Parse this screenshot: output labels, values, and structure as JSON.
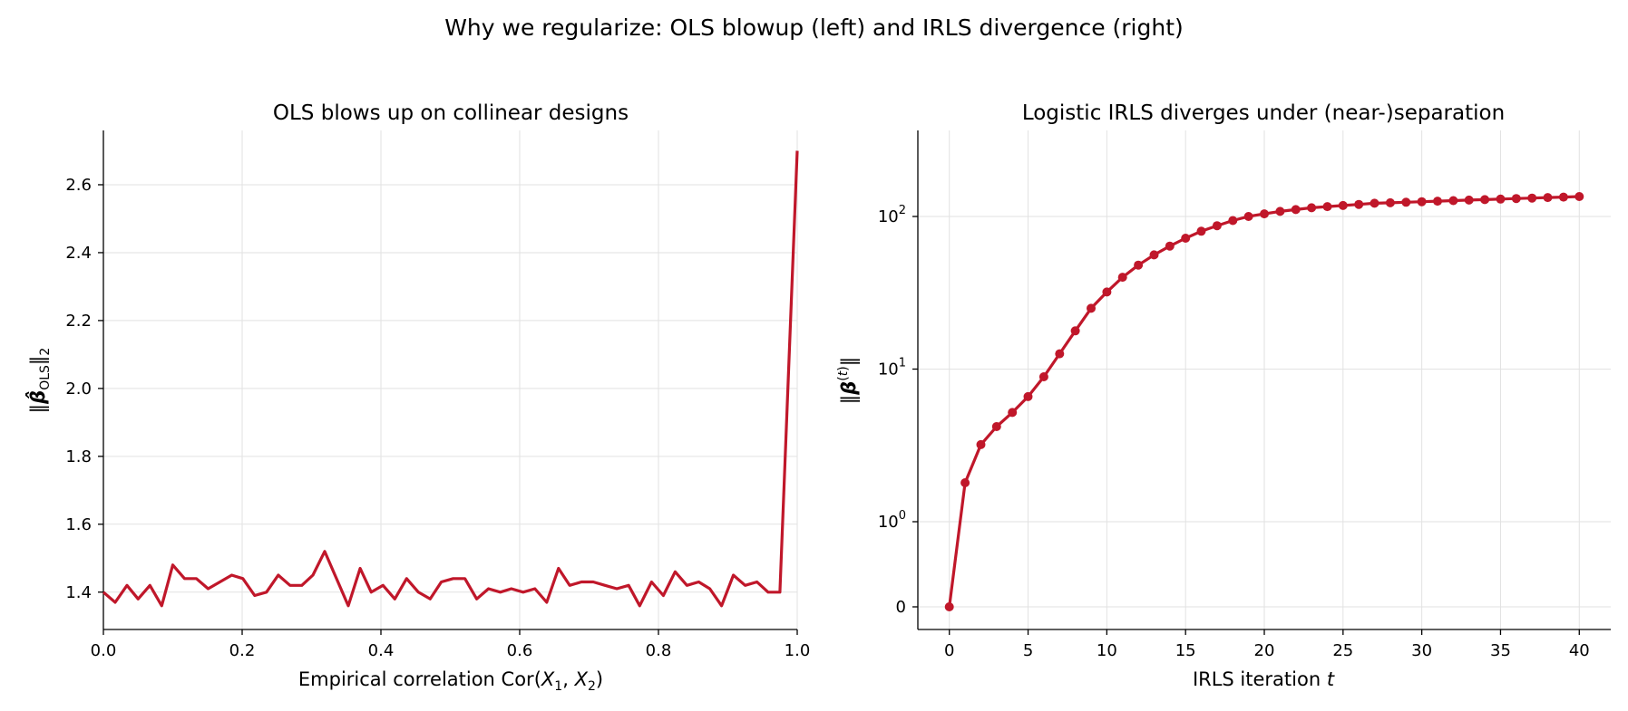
{
  "figure": {
    "title": "Why we regularize: OLS blowup (left) and IRLS divergence (right)"
  },
  "colors": {
    "series": "#c0172a",
    "grid": "#e2e2e2",
    "axis": "#000000"
  },
  "chart_data": [
    {
      "type": "line",
      "title": "OLS blows up on collinear designs",
      "xlabel": "Empirical correlation  Cor(X₁, X₂)",
      "ylabel": "‖β̂_OLS‖₂",
      "xlim": [
        0,
        1
      ],
      "ylim": [
        1.29,
        2.76
      ],
      "xticks": [
        0,
        0.2,
        0.4,
        0.6,
        0.8,
        1.0
      ],
      "xtick_labels": [
        "0.0",
        "0.2",
        "0.4",
        "0.6",
        "0.8",
        "1.0"
      ],
      "yticks": [
        1.4,
        1.6,
        1.8,
        2.0,
        2.2,
        2.4,
        2.6
      ],
      "ytick_labels": [
        "1.4",
        "1.6",
        "1.8",
        "2.0",
        "2.2",
        "2.4",
        "2.6"
      ],
      "grid": true,
      "series": [
        {
          "x": [
            0.0,
            0.017,
            0.034,
            0.05,
            0.067,
            0.084,
            0.1,
            0.117,
            0.134,
            0.151,
            0.168,
            0.185,
            0.201,
            0.218,
            0.235,
            0.252,
            0.269,
            0.286,
            0.302,
            0.319,
            0.336,
            0.353,
            0.37,
            0.386,
            0.403,
            0.42,
            0.437,
            0.454,
            0.471,
            0.487,
            0.504,
            0.521,
            0.538,
            0.555,
            0.572,
            0.588,
            0.605,
            0.622,
            0.639,
            0.656,
            0.672,
            0.689,
            0.706,
            0.723,
            0.74,
            0.757,
            0.773,
            0.79,
            0.807,
            0.824,
            0.841,
            0.858,
            0.874,
            0.891,
            0.908,
            0.925,
            0.942,
            0.958,
            0.975,
            1.0
          ],
          "values": [
            1.4,
            1.37,
            1.42,
            1.38,
            1.42,
            1.36,
            1.48,
            1.44,
            1.44,
            1.41,
            1.43,
            1.45,
            1.44,
            1.39,
            1.4,
            1.45,
            1.42,
            1.42,
            1.45,
            1.52,
            1.44,
            1.36,
            1.47,
            1.4,
            1.42,
            1.38,
            1.44,
            1.4,
            1.38,
            1.43,
            1.44,
            1.44,
            1.38,
            1.41,
            1.4,
            1.41,
            1.4,
            1.41,
            1.37,
            1.47,
            1.42,
            1.43,
            1.43,
            1.42,
            1.41,
            1.42,
            1.36,
            1.43,
            1.39,
            1.46,
            1.42,
            1.43,
            1.41,
            1.36,
            1.45,
            1.42,
            1.43,
            1.4,
            1.4,
            2.7
          ]
        }
      ]
    },
    {
      "type": "line",
      "title": "Logistic IRLS diverges under (near-)separation",
      "xlabel": "IRLS iteration  t",
      "ylabel": "‖β⁽ᵗ⁾‖",
      "y_scale": "symlog",
      "xlim": [
        -2,
        42
      ],
      "xticks": [
        0,
        5,
        10,
        15,
        20,
        25,
        30,
        35,
        40
      ],
      "xtick_labels": [
        "0",
        "5",
        "10",
        "15",
        "20",
        "25",
        "30",
        "35",
        "40"
      ],
      "yticks": [
        0,
        1,
        10,
        100
      ],
      "ytick_labels": [
        "0",
        "10^0",
        "10^1",
        "10^2"
      ],
      "grid": true,
      "markers": true,
      "series": [
        {
          "x": [
            0,
            1,
            2,
            3,
            4,
            5,
            6,
            7,
            8,
            9,
            10,
            11,
            12,
            13,
            14,
            15,
            16,
            17,
            18,
            19,
            20,
            21,
            22,
            23,
            24,
            25,
            26,
            27,
            28,
            29,
            30,
            31,
            32,
            33,
            34,
            35,
            36,
            37,
            38,
            39,
            40
          ],
          "values": [
            0,
            1.8,
            3.2,
            4.2,
            5.2,
            6.6,
            8.9,
            12.6,
            17.8,
            25,
            32,
            40,
            48,
            56,
            64,
            72,
            80,
            87,
            94,
            100,
            104,
            108,
            111,
            114,
            116,
            118,
            120,
            122,
            123,
            124,
            125,
            126,
            127,
            128,
            129,
            130,
            131,
            132,
            133,
            134,
            135
          ]
        }
      ]
    }
  ]
}
